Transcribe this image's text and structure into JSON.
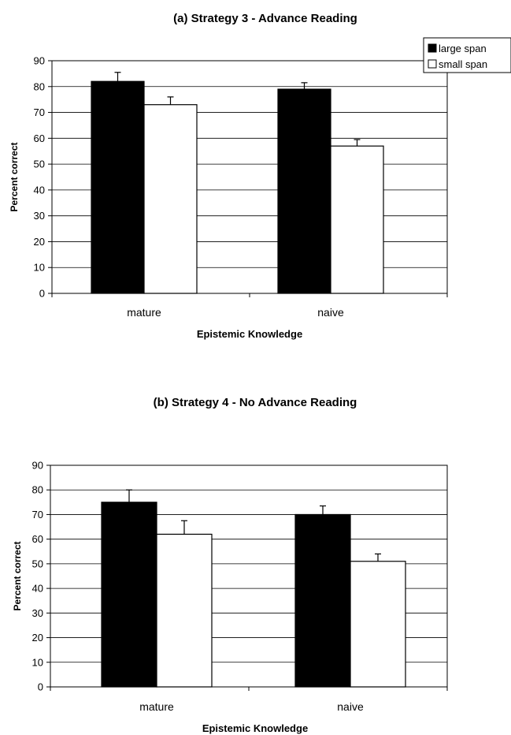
{
  "chart_data": [
    {
      "type": "bar",
      "title": "(a) Strategy 3 - Advance Reading",
      "xlabel": "Epistemic Knowledge",
      "ylabel": "Percent correct",
      "categories": [
        "mature",
        "naive"
      ],
      "ylim": [
        0,
        90
      ],
      "yticks": [
        0,
        10,
        20,
        30,
        40,
        50,
        60,
        70,
        80,
        90
      ],
      "grid": true,
      "legend": "top-right",
      "series": [
        {
          "name": "large span",
          "values": [
            82,
            79
          ],
          "errors": [
            3.5,
            2.5
          ],
          "color": "#000000"
        },
        {
          "name": "small span",
          "values": [
            73,
            57
          ],
          "errors": [
            3,
            2.5
          ],
          "color": "#ffffff"
        }
      ]
    },
    {
      "type": "bar",
      "title": "(b) Strategy 4 - No Advance Reading",
      "xlabel": "Epistemic Knowledge",
      "ylabel": "Percent correct",
      "categories": [
        "mature",
        "naive"
      ],
      "ylim": [
        0,
        90
      ],
      "yticks": [
        0,
        10,
        20,
        30,
        40,
        50,
        60,
        70,
        80,
        90
      ],
      "grid": true,
      "legend": "none",
      "series": [
        {
          "name": "large span",
          "values": [
            75,
            70
          ],
          "errors": [
            5,
            3.5
          ],
          "color": "#000000"
        },
        {
          "name": "small span",
          "values": [
            62,
            51
          ],
          "errors": [
            5.5,
            3
          ],
          "color": "#ffffff"
        }
      ]
    }
  ]
}
